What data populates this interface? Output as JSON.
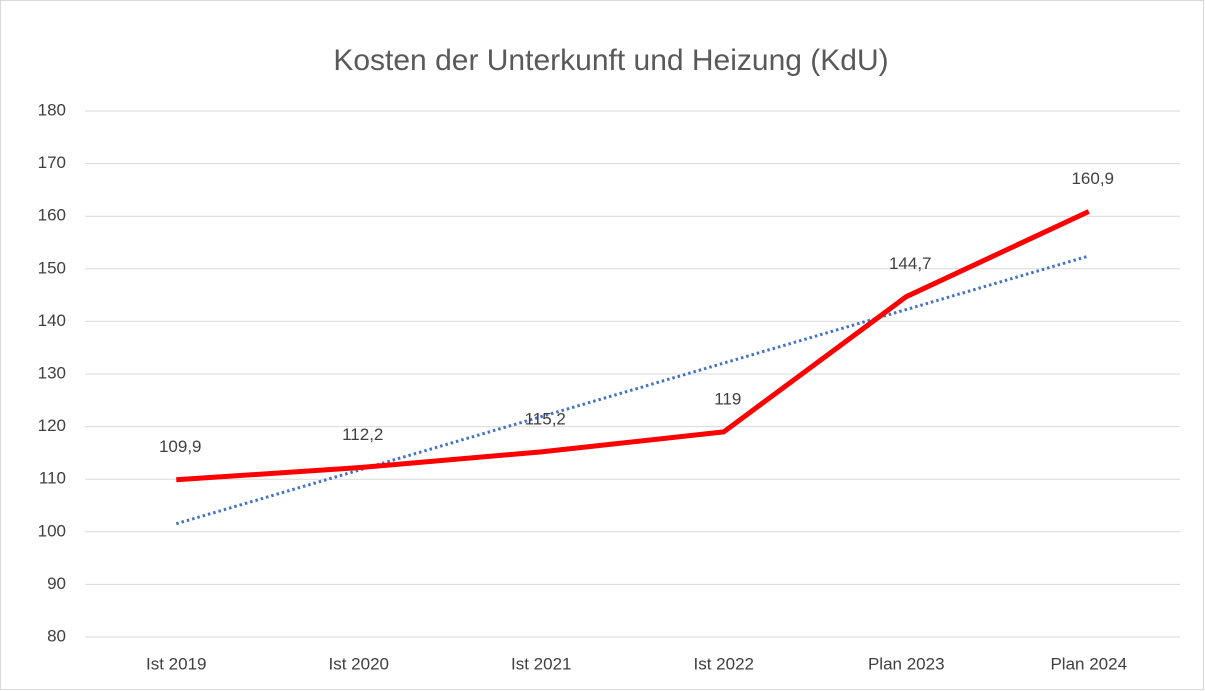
{
  "chart_data": {
    "type": "line",
    "title": "Kosten der Unterkunft und Heizung (KdU)",
    "categories": [
      "Ist 2019",
      "Ist 2020",
      "Ist 2021",
      "Ist 2022",
      "Plan 2023",
      "Plan 2024"
    ],
    "series": [
      {
        "color": "#ff0000",
        "values": [
          109.9,
          112.2,
          115.2,
          119,
          144.7,
          160.9
        ],
        "value_labels": [
          "109,9",
          "112,2",
          "115,2",
          "119",
          "144,7",
          "160,9"
        ]
      }
    ],
    "trendline": {
      "kind": "linear",
      "color": "#4472c4",
      "style": "dotted"
    },
    "ylim": [
      80,
      180
    ],
    "yticks": [
      80,
      90,
      100,
      110,
      120,
      130,
      140,
      150,
      160,
      170,
      180
    ],
    "grid": true
  }
}
